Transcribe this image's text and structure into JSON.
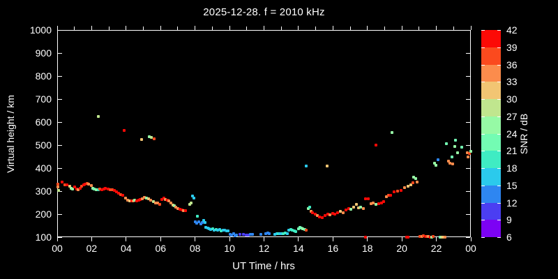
{
  "title": "2025-12-28. f = 2010 kHz",
  "chart_data": {
    "type": "scatter",
    "title": "2025-12-28. f = 2010 kHz",
    "xlabel": "UT Time / hrs",
    "ylabel": "Virtual height / km",
    "xlim": [
      0,
      24
    ],
    "ylim": [
      100,
      1000
    ],
    "grid": false,
    "background_color": "#000000",
    "foreground_color": "#ffffff",
    "x_tick_labels": [
      "00",
      "02",
      "04",
      "06",
      "08",
      "10",
      "12",
      "14",
      "16",
      "18",
      "20",
      "22",
      "00"
    ],
    "x_tick_hours": [
      0,
      2,
      4,
      6,
      8,
      10,
      12,
      14,
      16,
      18,
      20,
      22,
      24
    ],
    "x_minor_tick_hours": [
      1,
      3,
      5,
      7,
      9,
      11,
      13,
      15,
      17,
      19,
      21,
      23
    ],
    "y_tick_values": [
      100,
      200,
      300,
      400,
      500,
      600,
      700,
      800,
      900,
      1000
    ],
    "colorbar": {
      "label": "SNR / dB",
      "min": 6,
      "max": 42,
      "step": 3,
      "tick_labels": [
        "42",
        "39",
        "36",
        "33",
        "30",
        "27",
        "24",
        "21",
        "18",
        "15",
        "12",
        "9",
        "6"
      ],
      "segment_colors_low_to_high": [
        "#7c02f4",
        "#4b3ef2",
        "#2e86f1",
        "#2bcaec",
        "#3fecc3",
        "#73fcb3",
        "#96faa5",
        "#c0e68e",
        "#f2c573",
        "#fc8c4c",
        "#fb4a1e",
        "#fc0a06"
      ]
    },
    "points_format": [
      "ut_hour",
      "virtual_height_km",
      "snr_db"
    ],
    "points": [
      [
        0.02,
        330,
        37
      ],
      [
        0.06,
        317,
        34
      ],
      [
        0.08,
        303,
        28
      ],
      [
        0.27,
        338,
        40
      ],
      [
        0.44,
        326,
        37
      ],
      [
        0.58,
        328,
        40
      ],
      [
        0.71,
        320,
        31
      ],
      [
        0.8,
        313,
        26
      ],
      [
        0.89,
        310,
        25
      ],
      [
        1.02,
        317,
        40
      ],
      [
        1.12,
        310,
        40
      ],
      [
        1.21,
        305,
        34
      ],
      [
        1.32,
        313,
        40
      ],
      [
        1.43,
        320,
        37
      ],
      [
        1.52,
        328,
        40
      ],
      [
        1.62,
        331,
        40
      ],
      [
        1.73,
        334,
        37
      ],
      [
        1.83,
        331,
        34
      ],
      [
        1.97,
        323,
        34
      ],
      [
        2.06,
        313,
        26
      ],
      [
        2.16,
        310,
        22
      ],
      [
        2.27,
        307,
        25
      ],
      [
        2.38,
        305,
        19
      ],
      [
        2.47,
        310,
        37
      ],
      [
        2.6,
        307,
        40
      ],
      [
        2.7,
        310,
        40
      ],
      [
        2.8,
        313,
        40
      ],
      [
        2.94,
        310,
        40
      ],
      [
        3.07,
        307,
        37
      ],
      [
        3.2,
        305,
        37
      ],
      [
        3.3,
        302,
        40
      ],
      [
        3.42,
        296,
        40
      ],
      [
        3.55,
        292,
        40
      ],
      [
        3.68,
        286,
        37
      ],
      [
        3.8,
        282,
        40
      ],
      [
        3.95,
        270,
        34
      ],
      [
        4.1,
        262,
        34
      ],
      [
        4.22,
        259,
        31
      ],
      [
        4.32,
        257,
        40
      ],
      [
        4.42,
        258,
        34
      ],
      [
        4.48,
        260,
        25
      ],
      [
        4.6,
        259,
        40
      ],
      [
        4.72,
        262,
        40
      ],
      [
        4.82,
        265,
        40
      ],
      [
        4.94,
        267,
        34
      ],
      [
        5.07,
        272,
        34
      ],
      [
        5.17,
        270,
        26
      ],
      [
        5.3,
        267,
        31
      ],
      [
        5.42,
        262,
        34
      ],
      [
        5.57,
        255,
        29
      ],
      [
        5.7,
        249,
        34
      ],
      [
        5.82,
        247,
        34
      ],
      [
        5.94,
        242,
        37
      ],
      [
        6.07,
        265,
        40
      ],
      [
        6.18,
        269,
        40
      ],
      [
        6.28,
        265,
        34
      ],
      [
        6.38,
        262,
        40
      ],
      [
        6.48,
        257,
        34
      ],
      [
        6.58,
        247,
        34
      ],
      [
        6.7,
        239,
        31
      ],
      [
        6.78,
        237,
        25
      ],
      [
        6.88,
        229,
        34
      ],
      [
        7.0,
        224,
        34
      ],
      [
        7.12,
        221,
        40
      ],
      [
        7.24,
        218,
        40
      ],
      [
        7.34,
        216,
        34
      ],
      [
        7.45,
        214,
        40
      ],
      [
        7.7,
        242,
        28
      ],
      [
        7.78,
        247,
        28
      ],
      [
        2.38,
        625,
        28
      ],
      [
        3.87,
        565,
        40
      ],
      [
        4.88,
        525,
        31
      ],
      [
        5.35,
        536,
        25
      ],
      [
        5.45,
        532,
        28
      ],
      [
        5.62,
        527,
        37
      ],
      [
        7.86,
        280,
        16
      ],
      [
        7.95,
        271,
        16
      ],
      [
        8.13,
        192,
        18
      ],
      [
        8.02,
        167,
        13
      ],
      [
        8.1,
        162,
        13
      ],
      [
        8.21,
        168,
        13
      ],
      [
        8.32,
        158,
        13
      ],
      [
        8.42,
        164,
        13
      ],
      [
        8.5,
        172,
        16
      ],
      [
        8.57,
        165,
        16
      ],
      [
        8.64,
        141,
        16
      ],
      [
        8.74,
        138,
        16
      ],
      [
        8.83,
        136,
        16
      ],
      [
        8.92,
        133,
        17
      ],
      [
        9.02,
        135,
        19
      ],
      [
        9.12,
        131,
        16
      ],
      [
        9.22,
        133,
        19
      ],
      [
        9.32,
        131,
        16
      ],
      [
        9.42,
        133,
        16
      ],
      [
        9.52,
        128,
        19
      ],
      [
        9.62,
        131,
        16
      ],
      [
        9.72,
        129,
        16
      ],
      [
        9.82,
        126,
        16
      ],
      [
        9.92,
        128,
        16
      ],
      [
        10.02,
        111,
        13
      ],
      [
        10.12,
        108,
        13
      ],
      [
        10.22,
        114,
        13
      ],
      [
        10.32,
        107,
        13
      ],
      [
        10.42,
        108,
        13
      ],
      [
        10.6,
        113,
        10
      ],
      [
        10.8,
        112,
        10
      ],
      [
        10.98,
        109,
        10
      ],
      [
        11.08,
        109,
        10
      ],
      [
        11.22,
        112,
        13
      ],
      [
        11.32,
        112,
        13
      ],
      [
        11.83,
        112,
        13
      ],
      [
        12.1,
        114,
        13
      ],
      [
        12.24,
        117,
        13
      ],
      [
        12.32,
        114,
        13
      ],
      [
        12.64,
        112,
        16
      ],
      [
        12.74,
        114,
        16
      ],
      [
        12.84,
        116,
        18
      ],
      [
        12.92,
        114,
        16
      ],
      [
        13.02,
        116,
        16
      ],
      [
        13.12,
        116,
        19
      ],
      [
        13.22,
        118,
        18
      ],
      [
        13.35,
        114,
        16
      ],
      [
        13.45,
        129,
        16
      ],
      [
        13.55,
        132,
        19
      ],
      [
        13.65,
        130,
        19
      ],
      [
        13.75,
        126,
        18
      ],
      [
        13.85,
        124,
        19
      ],
      [
        14.0,
        136,
        22
      ],
      [
        14.08,
        141,
        22
      ],
      [
        14.17,
        139,
        22
      ],
      [
        14.26,
        136,
        25
      ],
      [
        14.35,
        134,
        22
      ],
      [
        14.45,
        131,
        37
      ],
      [
        14.56,
        224,
        25
      ],
      [
        14.65,
        229,
        18
      ],
      [
        14.72,
        211,
        34
      ],
      [
        14.83,
        206,
        40
      ],
      [
        14.97,
        199,
        40
      ],
      [
        15.1,
        193,
        34
      ],
      [
        15.23,
        189,
        40
      ],
      [
        15.37,
        186,
        40
      ],
      [
        15.54,
        193,
        40
      ],
      [
        15.7,
        199,
        40
      ],
      [
        15.82,
        196,
        34
      ],
      [
        15.97,
        203,
        40
      ],
      [
        16.1,
        201,
        40
      ],
      [
        16.27,
        206,
        40
      ],
      [
        16.44,
        211,
        31
      ],
      [
        16.58,
        206,
        34
      ],
      [
        16.75,
        219,
        40
      ],
      [
        16.9,
        223,
        40
      ],
      [
        17.05,
        221,
        25
      ],
      [
        17.2,
        229,
        31
      ],
      [
        17.35,
        241,
        31
      ],
      [
        17.5,
        227,
        31
      ],
      [
        17.62,
        231,
        25
      ],
      [
        17.75,
        223,
        34
      ],
      [
        17.9,
        266,
        40
      ],
      [
        18.05,
        266,
        40
      ],
      [
        18.2,
        246,
        34
      ],
      [
        18.33,
        249,
        34
      ],
      [
        18.5,
        243,
        25
      ],
      [
        18.65,
        246,
        40
      ],
      [
        18.8,
        249,
        40
      ],
      [
        18.94,
        256,
        40
      ],
      [
        19.1,
        276,
        34
      ],
      [
        19.24,
        281,
        37
      ],
      [
        19.35,
        281,
        40
      ],
      [
        19.55,
        296,
        40
      ],
      [
        19.75,
        301,
        37
      ],
      [
        19.96,
        304,
        40
      ],
      [
        20.16,
        316,
        34
      ],
      [
        20.35,
        321,
        31
      ],
      [
        20.5,
        326,
        31
      ],
      [
        20.63,
        335,
        37
      ],
      [
        20.9,
        339,
        34
      ],
      [
        14.45,
        409,
        16
      ],
      [
        15.67,
        409,
        31
      ],
      [
        18.48,
        500,
        40
      ],
      [
        19.44,
        556,
        26
      ],
      [
        20.7,
        362,
        25
      ],
      [
        20.8,
        355,
        25
      ],
      [
        21.9,
        422,
        25
      ],
      [
        21.97,
        412,
        25
      ],
      [
        22.1,
        437,
        13
      ],
      [
        22.58,
        506,
        22
      ],
      [
        22.7,
        429,
        34
      ],
      [
        22.78,
        422,
        34
      ],
      [
        22.9,
        447,
        22
      ],
      [
        22.95,
        417,
        34
      ],
      [
        23.05,
        493,
        25
      ],
      [
        23.12,
        520,
        22
      ],
      [
        23.22,
        468,
        25
      ],
      [
        23.46,
        490,
        22
      ],
      [
        23.8,
        468,
        34
      ],
      [
        23.85,
        447,
        34
      ],
      [
        23.93,
        465,
        37
      ],
      [
        23.98,
        472,
        25
      ],
      [
        17.87,
        100,
        40
      ],
      [
        20.28,
        100,
        40
      ],
      [
        20.36,
        100,
        40
      ],
      [
        21.05,
        102,
        37
      ],
      [
        21.15,
        104,
        34
      ],
      [
        21.25,
        105,
        37
      ],
      [
        21.35,
        103,
        40
      ],
      [
        21.45,
        102,
        37
      ],
      [
        21.55,
        104,
        34
      ],
      [
        21.65,
        101,
        40
      ],
      [
        21.72,
        100,
        25
      ],
      [
        21.8,
        102,
        37
      ],
      [
        22.2,
        100,
        22
      ],
      [
        22.3,
        100,
        28
      ],
      [
        22.4,
        100,
        31
      ],
      [
        22.5,
        100,
        34
      ]
    ]
  }
}
